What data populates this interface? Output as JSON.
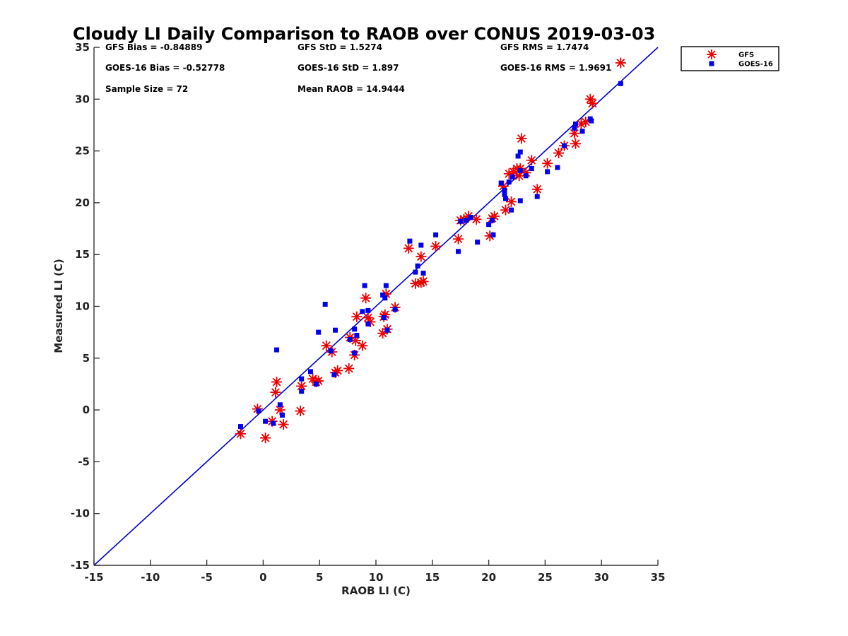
{
  "chart_data": {
    "type": "scatter",
    "title": "Cloudy LI Daily Comparison to RAOB over CONUS 2019-03-03",
    "xlabel": "RAOB LI (C)",
    "ylabel": "Measured LI (C)",
    "xlim": [
      -15,
      35
    ],
    "ylim": [
      -15,
      35
    ],
    "xticks": [
      "-15",
      "-10",
      "-5",
      "0",
      "5",
      "10",
      "15",
      "20",
      "25",
      "30",
      "35"
    ],
    "yticks": [
      "-15",
      "-10",
      "-5",
      "0",
      "5",
      "10",
      "15",
      "20",
      "25",
      "30",
      "35"
    ],
    "grid": false,
    "legend_position": "outside-top-right",
    "reference_line": {
      "x": [
        -15,
        35
      ],
      "y": [
        -15,
        35
      ],
      "color": "#0000cc"
    },
    "stats": [
      "GFS Bias = -0.84889",
      "GFS StD = 1.5274",
      "GFS RMS = 1.7474",
      "GOES-16 Bias = -0.52778",
      "GOES-16 StD = 1.897",
      "GOES-16 RMS = 1.9691",
      "Sample Size = 72",
      "Mean RAOB = 14.9444"
    ],
    "series": [
      {
        "name": "GFS",
        "marker": "asterisk",
        "color": "#ee0000",
        "points": [
          [
            -2.0,
            -2.3
          ],
          [
            -0.5,
            0.1
          ],
          [
            0.2,
            -2.7
          ],
          [
            0.8,
            -1.1
          ],
          [
            1.1,
            1.7
          ],
          [
            1.2,
            2.7
          ],
          [
            1.5,
            0.0
          ],
          [
            1.8,
            -1.4
          ],
          [
            3.3,
            -0.1
          ],
          [
            3.4,
            2.3
          ],
          [
            4.4,
            3.0
          ],
          [
            4.7,
            2.7
          ],
          [
            4.9,
            2.8
          ],
          [
            5.6,
            6.2
          ],
          [
            6.1,
            5.6
          ],
          [
            6.4,
            3.6
          ],
          [
            6.6,
            3.8
          ],
          [
            7.6,
            4.0
          ],
          [
            7.7,
            7.0
          ],
          [
            8.1,
            5.3
          ],
          [
            8.2,
            6.7
          ],
          [
            8.3,
            9.0
          ],
          [
            8.8,
            6.2
          ],
          [
            9.1,
            10.8
          ],
          [
            9.3,
            8.9
          ],
          [
            9.5,
            8.5
          ],
          [
            10.6,
            7.4
          ],
          [
            10.7,
            9.0
          ],
          [
            10.8,
            9.2
          ],
          [
            10.9,
            11.2
          ],
          [
            11.0,
            7.8
          ],
          [
            11.7,
            9.9
          ],
          [
            12.9,
            15.6
          ],
          [
            13.5,
            12.2
          ],
          [
            14.0,
            12.3
          ],
          [
            14.0,
            14.8
          ],
          [
            14.2,
            12.4
          ],
          [
            15.3,
            15.8
          ],
          [
            17.3,
            16.5
          ],
          [
            17.5,
            18.3
          ],
          [
            17.8,
            18.4
          ],
          [
            18.2,
            18.7
          ],
          [
            18.9,
            18.4
          ],
          [
            20.1,
            16.8
          ],
          [
            20.3,
            18.5
          ],
          [
            20.5,
            18.7
          ],
          [
            21.3,
            21.6
          ],
          [
            21.5,
            19.3
          ],
          [
            21.8,
            22.8
          ],
          [
            22.0,
            20.1
          ],
          [
            22.2,
            23.0
          ],
          [
            22.5,
            23.3
          ],
          [
            22.7,
            22.6
          ],
          [
            22.8,
            23.3
          ],
          [
            22.9,
            26.2
          ],
          [
            23.3,
            22.9
          ],
          [
            23.8,
            24.1
          ],
          [
            24.3,
            21.3
          ],
          [
            25.2,
            23.8
          ],
          [
            26.2,
            24.8
          ],
          [
            26.7,
            25.5
          ],
          [
            27.6,
            26.7
          ],
          [
            27.7,
            25.7
          ],
          [
            28.2,
            27.6
          ],
          [
            28.6,
            27.8
          ],
          [
            29.0,
            30.0
          ],
          [
            29.2,
            29.6
          ],
          [
            31.7,
            33.5
          ]
        ]
      },
      {
        "name": "GOES-16",
        "marker": "square",
        "color": "#0000ee",
        "points": [
          [
            -2.0,
            -1.6
          ],
          [
            -0.4,
            -0.1
          ],
          [
            0.2,
            -1.1
          ],
          [
            0.9,
            -1.3
          ],
          [
            1.2,
            5.8
          ],
          [
            1.5,
            0.5
          ],
          [
            1.7,
            -0.5
          ],
          [
            3.4,
            1.8
          ],
          [
            3.4,
            3.0
          ],
          [
            4.2,
            3.7
          ],
          [
            4.7,
            2.5
          ],
          [
            4.9,
            7.5
          ],
          [
            5.5,
            10.2
          ],
          [
            6.0,
            5.7
          ],
          [
            6.3,
            3.4
          ],
          [
            6.4,
            7.7
          ],
          [
            7.7,
            6.8
          ],
          [
            8.1,
            5.5
          ],
          [
            8.1,
            7.8
          ],
          [
            8.3,
            7.2
          ],
          [
            8.8,
            9.5
          ],
          [
            9.0,
            12.0
          ],
          [
            9.3,
            9.6
          ],
          [
            9.3,
            8.3
          ],
          [
            10.6,
            11.1
          ],
          [
            10.7,
            8.9
          ],
          [
            10.8,
            10.8
          ],
          [
            10.9,
            12.0
          ],
          [
            11.0,
            7.7
          ],
          [
            11.7,
            9.7
          ],
          [
            13.0,
            16.3
          ],
          [
            13.5,
            13.3
          ],
          [
            13.7,
            13.9
          ],
          [
            14.0,
            15.9
          ],
          [
            14.2,
            13.2
          ],
          [
            15.3,
            16.9
          ],
          [
            17.3,
            15.3
          ],
          [
            17.5,
            18.2
          ],
          [
            18.0,
            18.3
          ],
          [
            18.4,
            18.6
          ],
          [
            19.0,
            16.2
          ],
          [
            20.0,
            17.9
          ],
          [
            20.3,
            18.3
          ],
          [
            20.4,
            16.9
          ],
          [
            21.1,
            21.9
          ],
          [
            21.4,
            21.2
          ],
          [
            21.4,
            20.8
          ],
          [
            21.5,
            20.4
          ],
          [
            21.8,
            22.0
          ],
          [
            22.0,
            19.3
          ],
          [
            22.1,
            22.5
          ],
          [
            22.6,
            24.5
          ],
          [
            22.8,
            24.9
          ],
          [
            22.8,
            20.2
          ],
          [
            22.8,
            23.1
          ],
          [
            23.3,
            22.6
          ],
          [
            23.8,
            23.3
          ],
          [
            24.3,
            20.6
          ],
          [
            25.2,
            23.0
          ],
          [
            26.1,
            23.4
          ],
          [
            26.7,
            25.5
          ],
          [
            27.6,
            27.2
          ],
          [
            27.7,
            27.6
          ],
          [
            28.3,
            26.9
          ],
          [
            29.0,
            28.1
          ],
          [
            29.1,
            27.9
          ],
          [
            31.7,
            31.5
          ]
        ]
      }
    ]
  }
}
